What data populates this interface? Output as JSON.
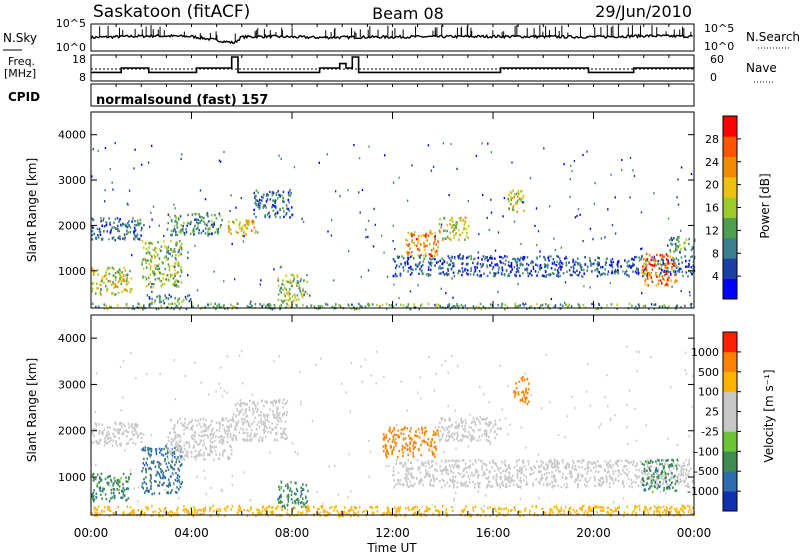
{
  "header": {
    "station": "Saskatoon (fitACF)",
    "beam": "Beam 08",
    "date": "29/Jun/2010"
  },
  "noise_panel": {
    "left_label": "N.Sky",
    "left_ticks": [
      "10^5",
      "10^0"
    ],
    "right_label": "N.Search",
    "right_ticks": [
      "10^5",
      "10^0"
    ]
  },
  "freq_panel": {
    "left_label_line1": "Freq.",
    "left_label_line2": "[MHz]",
    "left_ticks": [
      "18",
      "8"
    ],
    "right_label": "Nave",
    "right_ticks": [
      "60",
      "0"
    ]
  },
  "cpid": {
    "label": "CPID",
    "text": "normalsound (fast) 157"
  },
  "power_panel": {
    "ylabel": "Slant Range [km]",
    "yticks": [
      "4000",
      "3000",
      "2000",
      "1000"
    ],
    "colorbar_label": "Power [dB]",
    "colorbar_ticks": [
      "28",
      "24",
      "20",
      "16",
      "12",
      "8",
      "4"
    ],
    "colors": [
      "#0000ff",
      "#1c3fa6",
      "#3b7e8e",
      "#4ea050",
      "#9ccc2c",
      "#f0c010",
      "#f08c00",
      "#ff5500",
      "#ff0000"
    ]
  },
  "velocity_panel": {
    "ylabel": "Slant Range [km]",
    "yticks": [
      "4000",
      "3000",
      "2000",
      "1000"
    ],
    "colorbar_label": "Velocity [m s⁻¹]",
    "colorbar_ticks": [
      "1000",
      "500",
      "100",
      "25",
      "-25",
      "-100",
      "-500",
      "-1000"
    ],
    "colors": [
      "#1030b0",
      "#2e6cb0",
      "#3e8c50",
      "#6cc434",
      "#c8c8c8",
      "#c8c8c8",
      "#ffb400",
      "#ff8200",
      "#ff1e00"
    ]
  },
  "x_axis": {
    "ticks": [
      "00:00",
      "04:00",
      "08:00",
      "12:00",
      "16:00",
      "20:00",
      "00:00"
    ],
    "label": "Time UT"
  },
  "chart_data": [
    {
      "type": "line",
      "title": "N.Sky / N.Search",
      "xlim": [
        0,
        24
      ],
      "ylim_log10": [
        0,
        5
      ],
      "series": [
        {
          "name": "N.Sky",
          "x": [
            0,
            1.5,
            2.5,
            4,
            5.7,
            6,
            7,
            9,
            12,
            16,
            20,
            22,
            24
          ],
          "y_log10": [
            2.5,
            2.7,
            2.8,
            2.7,
            1.5,
            2.6,
            2.7,
            2.5,
            2.6,
            2.7,
            2.6,
            2.8,
            2.7
          ]
        }
      ]
    },
    {
      "type": "line",
      "title": "Freq. [MHz] / Nave",
      "xlim": [
        0,
        24
      ],
      "ylim": [
        8,
        18
      ],
      "series": [
        {
          "name": "Freq.",
          "x": [
            0,
            1.2,
            1.2,
            2.3,
            2.3,
            4.2,
            4.2,
            5.6,
            5.6,
            5.85,
            5.85,
            9.1,
            9.1,
            9.9,
            9.9,
            10.15,
            10.15,
            10.4,
            10.4,
            10.65,
            10.65,
            16.3,
            16.3,
            19.8,
            19.8,
            21.6,
            21.6,
            24
          ],
          "y": [
            11,
            11,
            13,
            13,
            11,
            11,
            13,
            13,
            18,
            18,
            11,
            11,
            13,
            13,
            15,
            15,
            13,
            13,
            18,
            18,
            11,
            11,
            13,
            13,
            11,
            11,
            13,
            13
          ]
        }
      ]
    },
    {
      "type": "heatmap",
      "title": "Power [dB]",
      "xlim": [
        0,
        24
      ],
      "ylim": [
        180,
        4500
      ],
      "color_scale": [
        4,
        28
      ],
      "regions": [
        {
          "t": [
            0,
            2
          ],
          "range_km": [
            1700,
            2200
          ],
          "value": 10
        },
        {
          "t": [
            0,
            1.6
          ],
          "range_km": [
            500,
            1100
          ],
          "value": 18
        },
        {
          "t": [
            2,
            3.6
          ],
          "range_km": [
            650,
            1700
          ],
          "value": 16
        },
        {
          "t": [
            3,
            5.2
          ],
          "range_km": [
            1800,
            2300
          ],
          "value": 12
        },
        {
          "t": [
            5.4,
            6.6
          ],
          "range_km": [
            1800,
            2150
          ],
          "value": 20
        },
        {
          "t": [
            6.4,
            8
          ],
          "range_km": [
            2200,
            2800
          ],
          "value": 10
        },
        {
          "t": [
            2.2,
            4
          ],
          "range_km": [
            300,
            500
          ],
          "value": 12
        },
        {
          "t": [
            7.4,
            8.6
          ],
          "range_km": [
            350,
            950
          ],
          "value": 16
        },
        {
          "t": [
            12.5,
            13.8
          ],
          "range_km": [
            1350,
            1900
          ],
          "value": 24
        },
        {
          "t": [
            13.8,
            15
          ],
          "range_km": [
            1700,
            2200
          ],
          "value": 18
        },
        {
          "t": [
            12,
            24
          ],
          "range_km": [
            900,
            1350
          ],
          "value": 8
        },
        {
          "t": [
            16.5,
            17.2
          ],
          "range_km": [
            2300,
            2800
          ],
          "value": 18
        },
        {
          "t": [
            21.9,
            23.3
          ],
          "range_km": [
            700,
            1400
          ],
          "value": 26
        },
        {
          "t": [
            23,
            24
          ],
          "range_km": [
            1400,
            1800
          ],
          "value": 12
        },
        {
          "t": [
            0,
            24
          ],
          "range_km": [
            180,
            300
          ],
          "value": 14
        }
      ]
    },
    {
      "type": "heatmap",
      "title": "Velocity [m s⁻¹]",
      "xlim": [
        0,
        24
      ],
      "ylim": [
        180,
        4500
      ],
      "regions": [
        {
          "t": [
            0,
            2
          ],
          "range_km": [
            1700,
            2200
          ],
          "value": 0
        },
        {
          "t": [
            0,
            1.6
          ],
          "range_km": [
            500,
            1100
          ],
          "value": 80
        },
        {
          "t": [
            2,
            3.6
          ],
          "range_km": [
            650,
            1700
          ],
          "value": 120
        },
        {
          "t": [
            3,
            5.6
          ],
          "range_km": [
            1400,
            2300
          ],
          "value": 0
        },
        {
          "t": [
            5.6,
            7.8
          ],
          "range_km": [
            1800,
            2700
          ],
          "value": 0
        },
        {
          "t": [
            7.4,
            8.6
          ],
          "range_km": [
            350,
            950
          ],
          "value": 80
        },
        {
          "t": [
            11.6,
            13.8
          ],
          "range_km": [
            1450,
            2100
          ],
          "value": -300
        },
        {
          "t": [
            13.8,
            16.3
          ],
          "range_km": [
            1800,
            2300
          ],
          "value": 0
        },
        {
          "t": [
            16.8,
            17.4
          ],
          "range_km": [
            2600,
            3200
          ],
          "value": -300
        },
        {
          "t": [
            12,
            24
          ],
          "range_km": [
            800,
            1400
          ],
          "value": 0
        },
        {
          "t": [
            21.9,
            23.3
          ],
          "range_km": [
            700,
            1400
          ],
          "value": 80
        },
        {
          "t": [
            0,
            24
          ],
          "range_km": [
            180,
            400
          ],
          "value": -60
        }
      ]
    }
  ]
}
